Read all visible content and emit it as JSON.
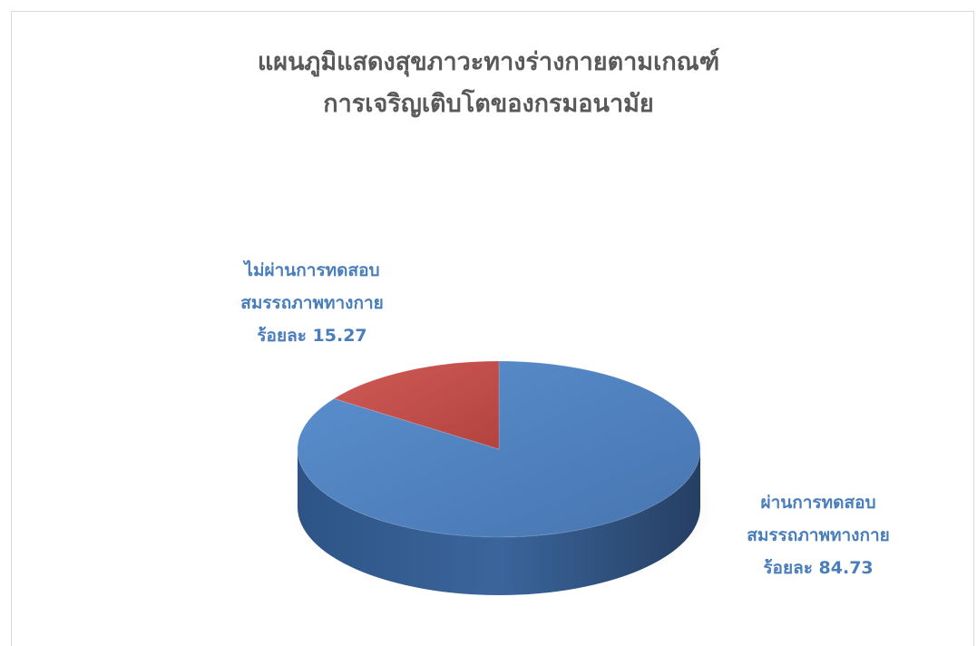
{
  "chart_data": {
    "type": "pie",
    "title_lines": [
      "แผนภูมิแสดงสุขภาวะทางร่างกายตามเกณฑ์",
      "การเจริญเติบโตของกรมอนามัย"
    ],
    "slices": [
      {
        "label_lines": [
          "ผ่านการทดสอบ",
          "สมรรถภาพทางกาย",
          "ร้อยละ 84.73"
        ],
        "value": 84.73,
        "color": "#4f81bd"
      },
      {
        "label_lines": [
          "ไม่ผ่านการทดสอบ",
          "สมรรถภาพทางกาย",
          "ร้อยละ 15.27"
        ],
        "value": 15.27,
        "color": "#c0504d"
      }
    ],
    "legend": "none",
    "style": "3d"
  },
  "colors": {
    "title": "#595959",
    "label": "#4a7ebb",
    "frame": "#d9d9d9"
  }
}
